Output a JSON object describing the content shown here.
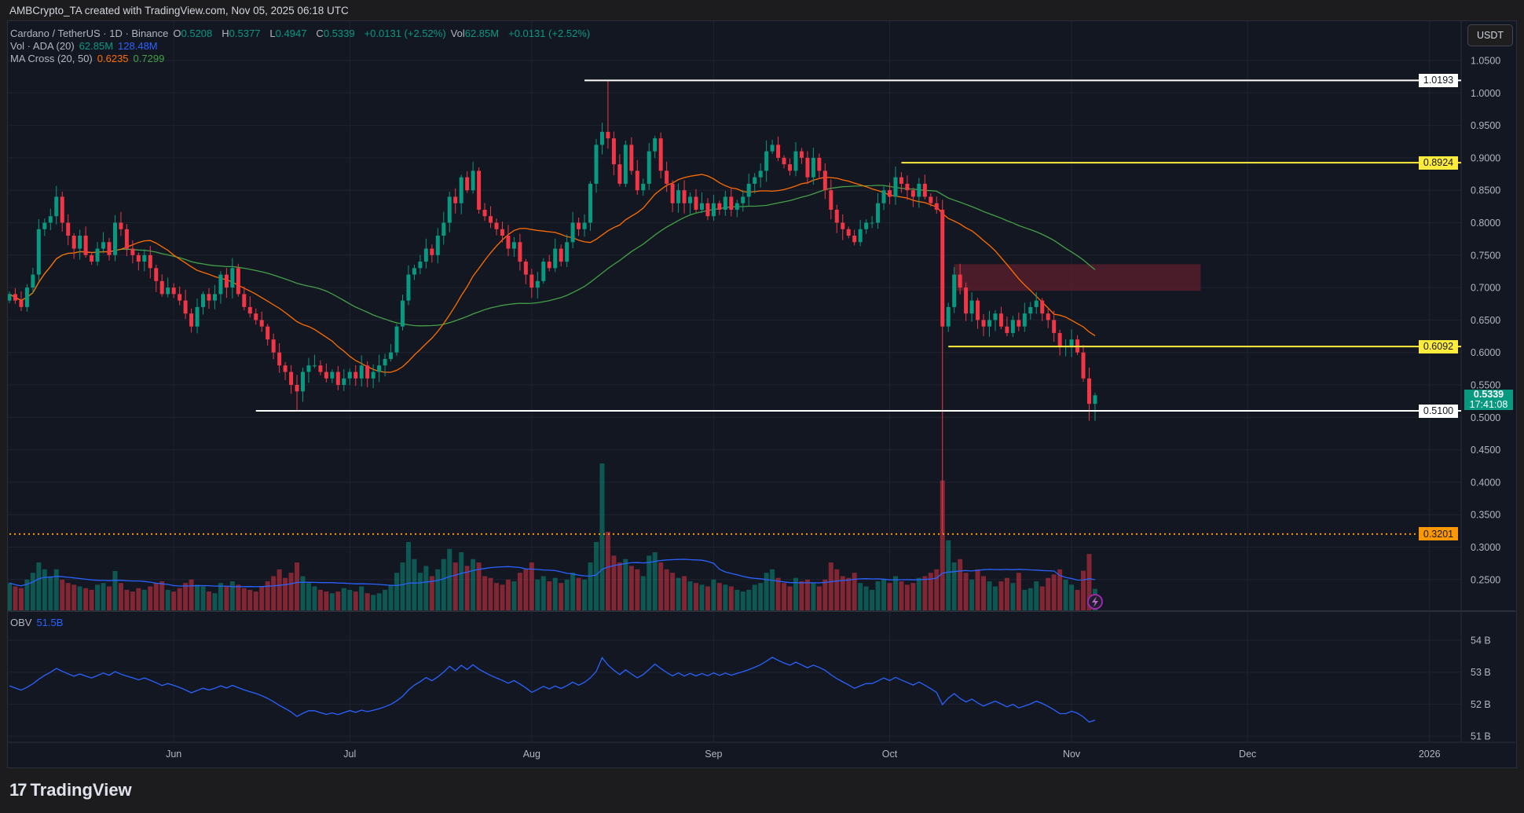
{
  "credit": "AMBCrypto_TA created with TradingView.com, Nov 05, 2025 06:18 UTC",
  "legend": {
    "symbol": "Cardano / TetherUS · 1D · Binance",
    "o_label": "O",
    "o": "0.5208",
    "h_label": "H",
    "h": "0.5377",
    "l_label": "L",
    "l": "0.4947",
    "c_label": "C",
    "c": "0.5339",
    "change": "+0.0131 (+2.52%)",
    "vol_label": "Vol",
    "vol": "62.85M",
    "vol_change": "+0.0131 (+2.52%)",
    "volume_indicator": "Vol · ADA (20)",
    "volume_value": "62.85M",
    "volume_ma_value": "128.48M",
    "ma_indicator": "MA Cross (20, 50)",
    "ma_fast_value": "0.6235",
    "ma_slow_value": "0.7299",
    "obv_indicator": "OBV",
    "obv_value": "51.5B"
  },
  "currency_button": "USDT",
  "branding": "TradingView",
  "colors": {
    "up": "#089981",
    "down": "#f23645",
    "ma_fast": "#ff6d00",
    "ma_slow": "#43a047",
    "volume_ma": "#2962ff",
    "obv": "#2962ff",
    "level_white": "#ffffff",
    "level_yellow": "#ffeb3b",
    "level_orange": "#ff9800",
    "zone": "#5d1f2e"
  },
  "chart_data": {
    "type": "candlestick",
    "interval": "1D",
    "x_range": [
      "2025-05-04",
      "2025-11-05"
    ],
    "xlim": [
      "2025-05-04",
      "2026-01-06"
    ],
    "ylim": [
      0.21,
      1.07
    ],
    "price_ticks": [
      "1.0500",
      "1.0000",
      "0.9500",
      "0.9000",
      "0.8500",
      "0.8000",
      "0.7500",
      "0.7000",
      "0.6500",
      "0.6000",
      "0.5500",
      "0.5000",
      "0.4500",
      "0.4000",
      "0.3500",
      "0.3000",
      "0.2500"
    ],
    "time_ticks": [
      {
        "label": "Jun",
        "date": "2025-06-01"
      },
      {
        "label": "Jul",
        "date": "2025-07-01"
      },
      {
        "label": "Aug",
        "date": "2025-08-01"
      },
      {
        "label": "Sep",
        "date": "2025-09-01"
      },
      {
        "label": "Oct",
        "date": "2025-10-01"
      },
      {
        "label": "Nov",
        "date": "2025-11-01"
      },
      {
        "label": "Dec",
        "date": "2025-12-01"
      },
      {
        "label": "2026",
        "date": "2026-01-01"
      }
    ],
    "close": [
      0.69,
      0.68,
      0.67,
      0.7,
      0.72,
      0.79,
      0.8,
      0.81,
      0.84,
      0.8,
      0.78,
      0.76,
      0.78,
      0.75,
      0.74,
      0.76,
      0.77,
      0.75,
      0.8,
      0.79,
      0.76,
      0.75,
      0.74,
      0.75,
      0.73,
      0.71,
      0.69,
      0.7,
      0.69,
      0.68,
      0.66,
      0.64,
      0.67,
      0.69,
      0.68,
      0.69,
      0.72,
      0.7,
      0.73,
      0.69,
      0.67,
      0.66,
      0.65,
      0.64,
      0.62,
      0.6,
      0.58,
      0.57,
      0.55,
      0.54,
      0.57,
      0.58,
      0.58,
      0.57,
      0.56,
      0.57,
      0.55,
      0.56,
      0.57,
      0.56,
      0.58,
      0.56,
      0.57,
      0.58,
      0.59,
      0.6,
      0.64,
      0.68,
      0.72,
      0.73,
      0.74,
      0.76,
      0.75,
      0.78,
      0.8,
      0.84,
      0.83,
      0.87,
      0.85,
      0.88,
      0.82,
      0.81,
      0.8,
      0.79,
      0.78,
      0.76,
      0.77,
      0.74,
      0.72,
      0.7,
      0.71,
      0.74,
      0.73,
      0.76,
      0.74,
      0.77,
      0.8,
      0.79,
      0.8,
      0.86,
      0.92,
      0.94,
      0.93,
      0.89,
      0.86,
      0.92,
      0.88,
      0.85,
      0.86,
      0.91,
      0.93,
      0.88,
      0.86,
      0.83,
      0.85,
      0.83,
      0.84,
      0.82,
      0.83,
      0.81,
      0.83,
      0.82,
      0.84,
      0.82,
      0.83,
      0.84,
      0.86,
      0.87,
      0.88,
      0.91,
      0.92,
      0.9,
      0.89,
      0.88,
      0.91,
      0.9,
      0.87,
      0.9,
      0.88,
      0.85,
      0.82,
      0.8,
      0.79,
      0.78,
      0.77,
      0.79,
      0.8,
      0.8,
      0.83,
      0.85,
      0.84,
      0.87,
      0.86,
      0.85,
      0.84,
      0.86,
      0.84,
      0.83,
      0.82,
      0.64,
      0.67,
      0.72,
      0.7,
      0.66,
      0.68,
      0.65,
      0.64,
      0.65,
      0.66,
      0.64,
      0.63,
      0.65,
      0.64,
      0.66,
      0.67,
      0.68,
      0.66,
      0.65,
      0.63,
      0.61,
      0.61,
      0.62,
      0.6,
      0.56,
      0.5208,
      0.5339
    ],
    "volume_millions": [
      80,
      70,
      65,
      90,
      110,
      140,
      120,
      100,
      120,
      90,
      80,
      75,
      70,
      65,
      60,
      75,
      80,
      70,
      115,
      80,
      60,
      55,
      65,
      60,
      70,
      80,
      85,
      60,
      55,
      65,
      80,
      90,
      75,
      70,
      55,
      50,
      80,
      70,
      85,
      75,
      65,
      60,
      55,
      70,
      85,
      100,
      120,
      95,
      110,
      140,
      100,
      80,
      70,
      60,
      55,
      50,
      55,
      65,
      60,
      55,
      70,
      50,
      45,
      50,
      60,
      75,
      110,
      140,
      200,
      150,
      110,
      130,
      100,
      120,
      150,
      180,
      140,
      170,
      130,
      150,
      140,
      100,
      95,
      80,
      75,
      90,
      85,
      110,
      120,
      140,
      90,
      100,
      85,
      95,
      80,
      90,
      110,
      95,
      90,
      140,
      200,
      430,
      230,
      160,
      140,
      150,
      130,
      120,
      100,
      160,
      170,
      140,
      120,
      110,
      95,
      100,
      85,
      80,
      75,
      70,
      90,
      80,
      75,
      70,
      60,
      55,
      60,
      75,
      80,
      110,
      120,
      95,
      80,
      70,
      95,
      85,
      90,
      80,
      70,
      90,
      140,
      120,
      100,
      95,
      110,
      80,
      70,
      60,
      85,
      90,
      80,
      100,
      85,
      75,
      80,
      95,
      100,
      110,
      120,
      380,
      205,
      140,
      150,
      110,
      90,
      120,
      100,
      85,
      70,
      85,
      95,
      80,
      110,
      60,
      65,
      85,
      70,
      95,
      105,
      120,
      90,
      75,
      60,
      116,
      165,
      62.85
    ],
    "notable_wicks": [
      {
        "date": "2025-08-14",
        "high": 1.0193
      },
      {
        "date": "2025-10-10",
        "low": 0.3201
      },
      {
        "date": "2025-06-22",
        "low": 0.51
      },
      {
        "date": "2025-11-04",
        "low": 0.4947
      },
      {
        "date": "2025-11-05",
        "high": 0.5377,
        "low": 0.4947
      }
    ],
    "ma_periods": [
      20,
      50
    ],
    "volume_ma_period": 20,
    "obv_ticks": [
      "54 B",
      "53 B",
      "52 B",
      "51 B"
    ],
    "obv_range": [
      50.6,
      55.0
    ],
    "levels": [
      {
        "price": 1.0193,
        "label": "1.0193",
        "from": "2025-08-10",
        "color": "#ffffff",
        "style": "solid"
      },
      {
        "price": 0.8924,
        "label": "0.8924",
        "from": "2025-10-03",
        "color": "#ffeb3b",
        "style": "solid"
      },
      {
        "price": 0.6092,
        "label": "0.6092",
        "from": "2025-10-11",
        "color": "#ffeb3b",
        "style": "solid"
      },
      {
        "price": 0.51,
        "label": "0.5100",
        "from": "2025-06-15",
        "color": "#ffffff",
        "style": "solid"
      },
      {
        "price": 0.3201,
        "label": "0.3201",
        "from": "2025-05-04",
        "color": "#ff9800",
        "style": "dotted"
      }
    ],
    "zone": {
      "from": "2025-10-12",
      "to": "2025-11-23",
      "top": 0.736,
      "bottom": 0.695
    },
    "last_price": {
      "price": "0.5339",
      "countdown": "17:41:08"
    }
  }
}
